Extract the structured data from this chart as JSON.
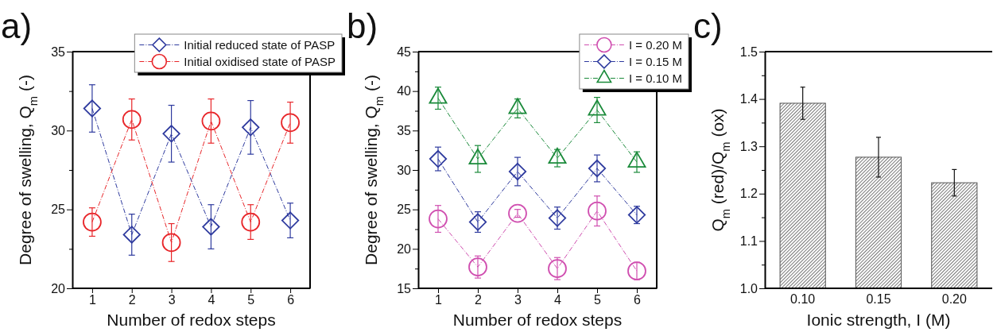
{
  "chart_data": [
    {
      "type": "line",
      "title": "a)",
      "xlabel": "Number of redox steps",
      "ylabel": "Degree of swelling, Q$_{m}$ (-)",
      "x": [
        1,
        2,
        3,
        4,
        5,
        6
      ],
      "xlim": [
        0.5,
        6.5
      ],
      "xticks": [
        1,
        2,
        3,
        4,
        5,
        6
      ],
      "ylim": [
        20,
        35
      ],
      "yticks": [
        20,
        {
          "value": 22.5,
          "label": null
        },
        25,
        {
          "value": 27.5,
          "label": null
        },
        30,
        {
          "value": 32.5,
          "label": null
        },
        35
      ],
      "legend": "top right",
      "line_style": "dashed",
      "grid": false,
      "series": [
        {
          "name": "Initial reduced state of PASP",
          "color": "#2e3a9e",
          "marker": "diamond",
          "values": [
            31.4,
            23.4,
            29.8,
            23.9,
            30.2,
            24.3
          ],
          "errors": [
            1.5,
            1.3,
            1.8,
            1.4,
            1.7,
            1.1
          ]
        },
        {
          "name": "Initial oxidised state of PASP",
          "color": "#e8262a",
          "marker": "circle",
          "values": [
            24.2,
            30.7,
            22.9,
            30.6,
            24.2,
            30.5
          ],
          "errors": [
            0.9,
            1.3,
            1.2,
            1.4,
            1.1,
            1.3
          ]
        }
      ]
    },
    {
      "type": "line",
      "title": "b)",
      "xlabel": "Number of redox steps",
      "ylabel": "Degree of swelling, Q$_{m}$ (-)",
      "x": [
        1,
        2,
        3,
        4,
        5,
        6
      ],
      "xlim": [
        0.5,
        6.5
      ],
      "xticks": [
        1,
        2,
        3,
        4,
        5,
        6
      ],
      "ylim": [
        15,
        45
      ],
      "yticks": [
        15,
        {
          "value": 17.5,
          "label": null
        },
        20,
        {
          "value": 22.5,
          "label": null
        },
        25,
        {
          "value": 27.5,
          "label": null
        },
        30,
        {
          "value": 32.5,
          "label": null
        },
        35,
        {
          "value": 37.5,
          "label": null
        },
        40,
        {
          "value": 42.5,
          "label": null
        },
        45
      ],
      "legend": "top right",
      "line_style": "dashed",
      "grid": false,
      "series": [
        {
          "name": "I = 0.20 M",
          "color": "#d04fb0",
          "marker": "circle",
          "values": [
            23.8,
            17.7,
            24.5,
            17.5,
            24.8,
            17.2
          ],
          "errors": [
            1.7,
            1.4,
            0.5,
            1.4,
            1.9,
            1.1
          ]
        },
        {
          "name": "I = 0.15 M",
          "color": "#2e3a9e",
          "marker": "diamond",
          "values": [
            31.4,
            23.4,
            29.8,
            23.9,
            30.2,
            24.3
          ],
          "errors": [
            1.5,
            1.3,
            1.8,
            1.4,
            1.7,
            1.1
          ]
        },
        {
          "name": "I = 0.10 M",
          "color": "#1a8a3a",
          "marker": "triangle",
          "values": [
            39.1,
            31.4,
            37.8,
            31.5,
            37.6,
            31.0
          ],
          "errors": [
            1.4,
            1.7,
            1.2,
            1.1,
            1.6,
            1.3
          ]
        }
      ]
    },
    {
      "type": "bar",
      "title": "c)",
      "xlabel": "Ionic strength, I (M)",
      "ylabel": "Q$_{m}$ (red)/Q$_{m}$ (ox)",
      "categories": [
        "0.10",
        "0.15",
        "0.20"
      ],
      "ylim": [
        1.0,
        1.5
      ],
      "yticks": [
        {
          "value": 1.0,
          "label": "1.0"
        },
        {
          "value": 1.05,
          "label": null
        },
        1.1,
        {
          "value": 1.15,
          "label": null
        },
        1.2,
        {
          "value": 1.25,
          "label": null
        },
        1.3,
        {
          "value": 1.35,
          "label": null
        },
        1.4,
        {
          "value": 1.45,
          "label": null
        },
        1.5
      ],
      "grid": false,
      "values": [
        1.391,
        1.277,
        1.223
      ],
      "errors": [
        0.034,
        0.042,
        0.028
      ],
      "color": "#555555"
    }
  ]
}
